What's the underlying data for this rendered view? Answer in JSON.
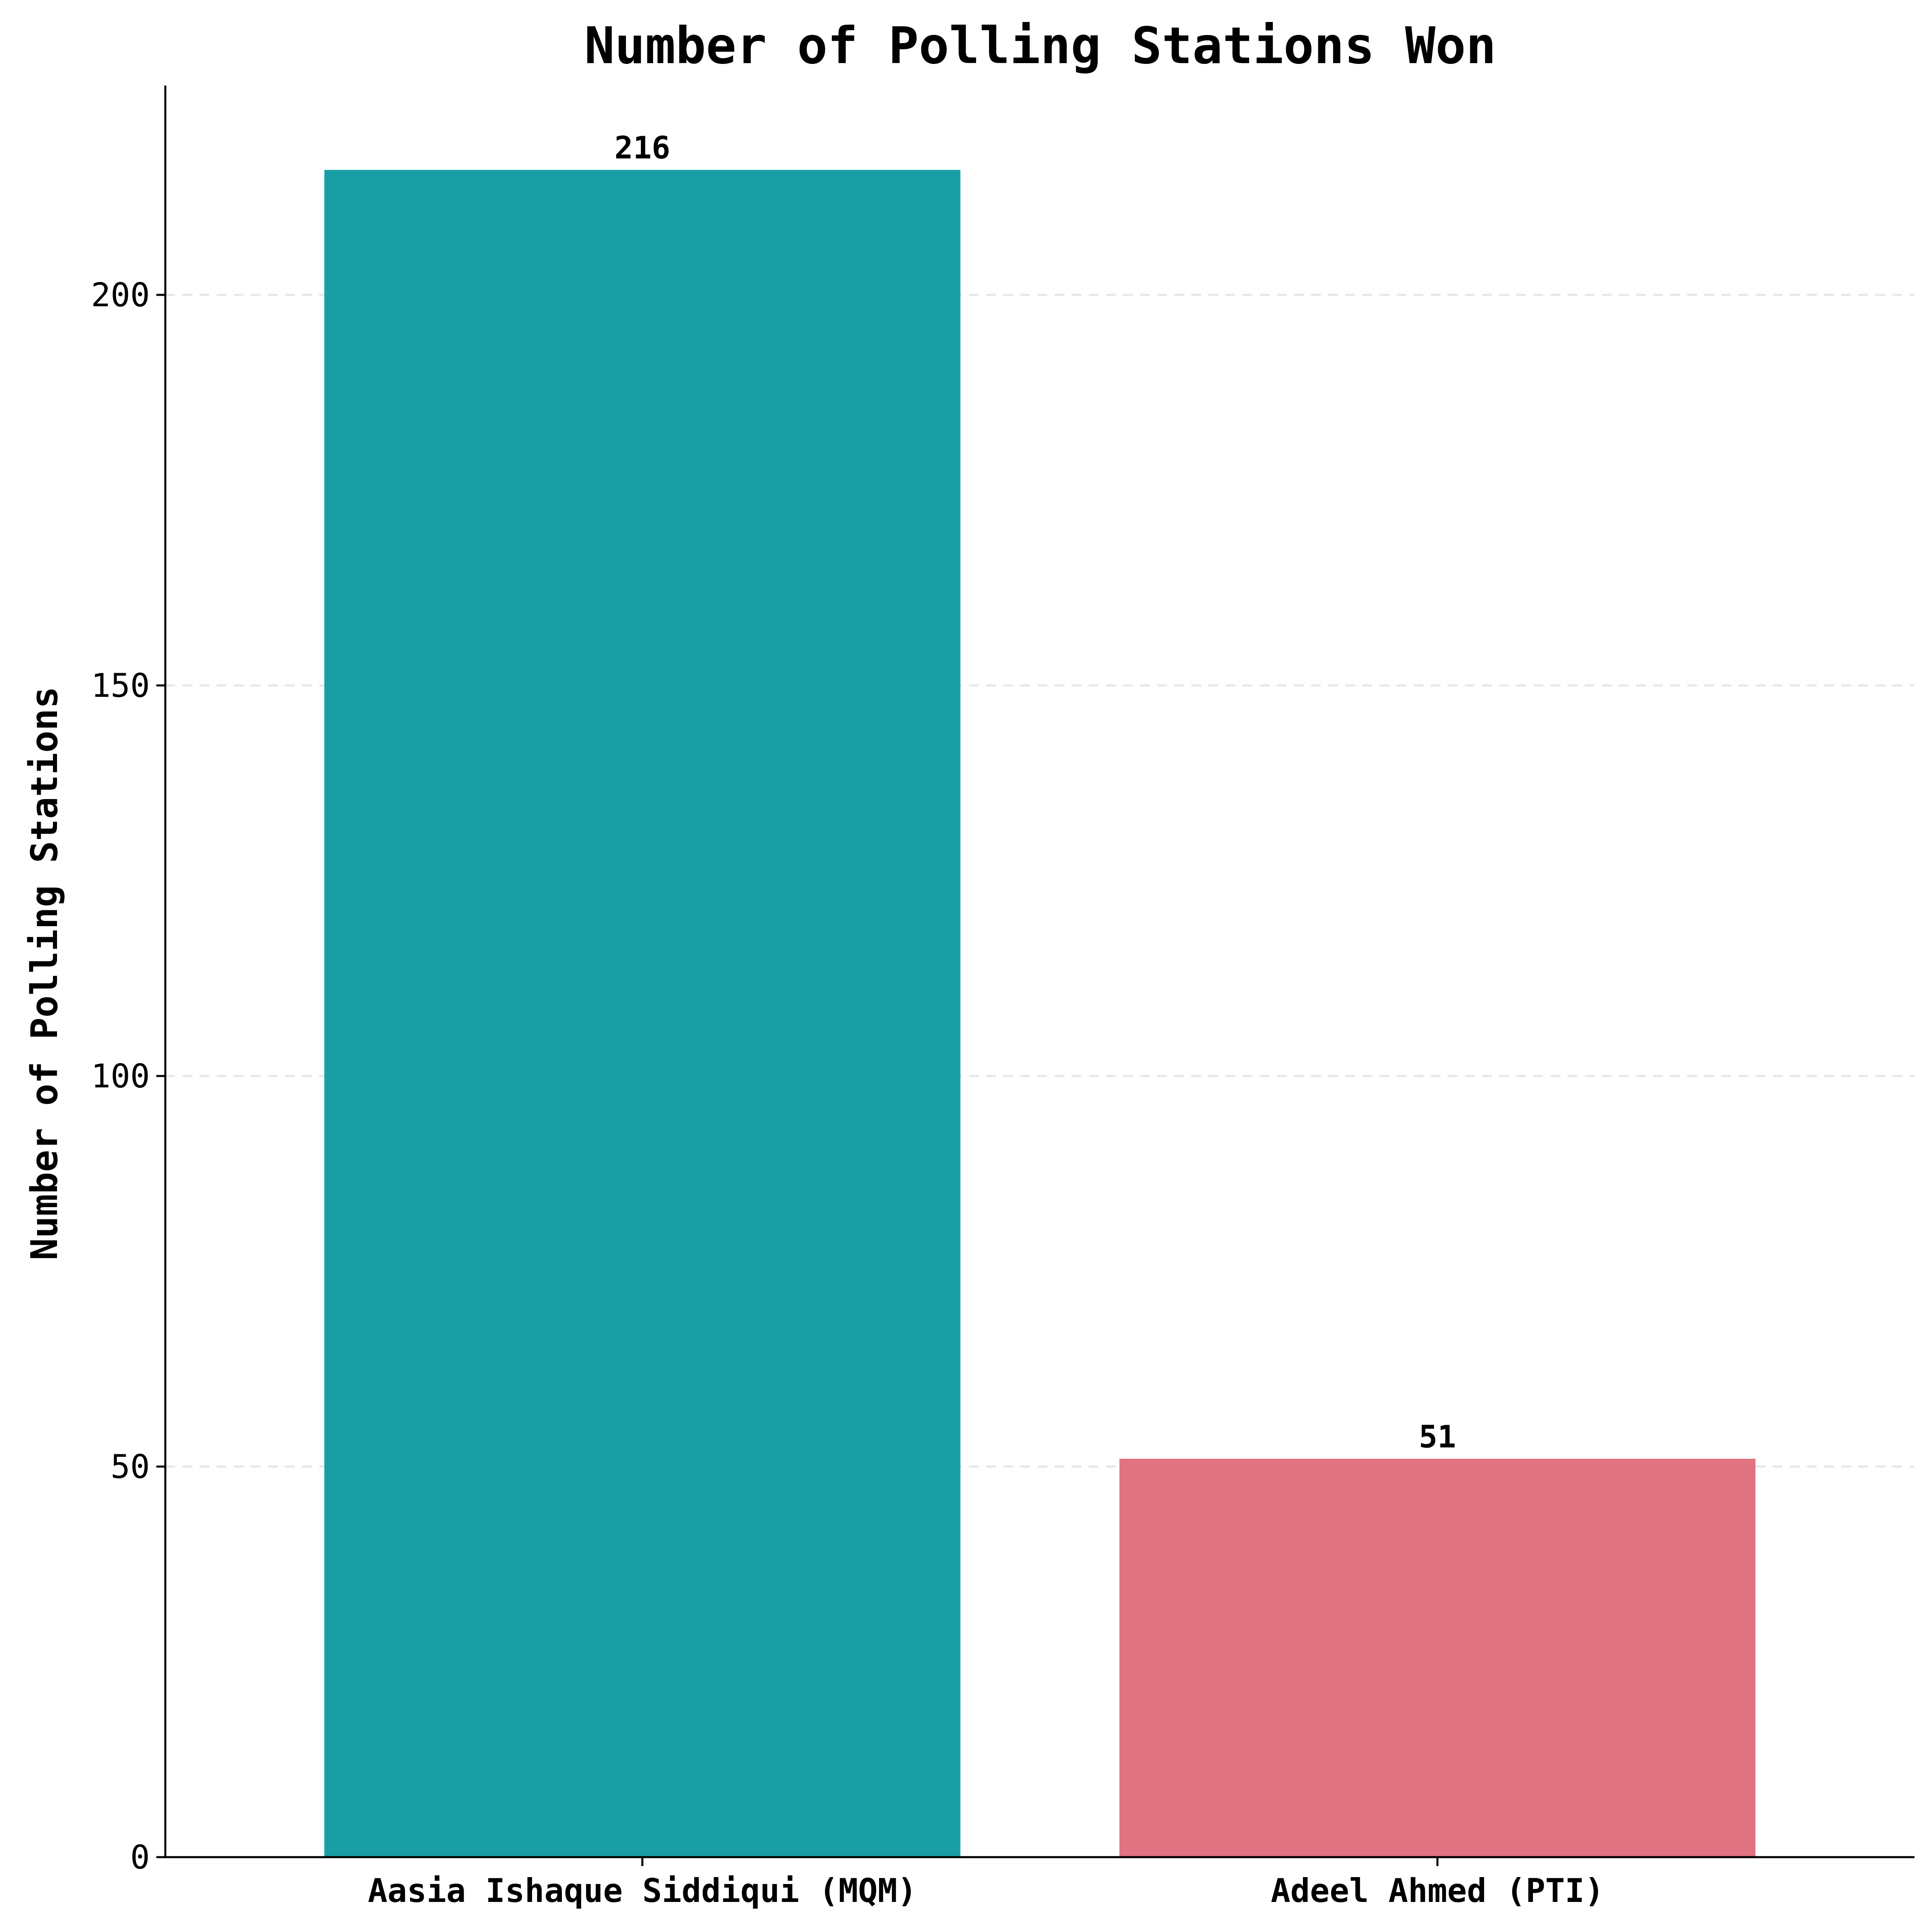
{
  "chart_data": {
    "type": "bar",
    "title": "Number of Polling Stations Won",
    "xlabel": "",
    "ylabel": "Number of Polling Stations",
    "categories": [
      "Aasia Ishaque Siddiqui (MQM)",
      "Adeel Ahmed (PTI)"
    ],
    "values": [
      216,
      51
    ],
    "value_labels": [
      "216",
      "51"
    ],
    "colors": [
      "#1a9ea6",
      "#e17282"
    ],
    "ylim": [
      0,
      226.8
    ],
    "yticks": [
      0,
      50,
      100,
      150,
      200
    ],
    "ytick_labels": [
      "0",
      "50",
      "100",
      "150",
      "200"
    ],
    "grid": "y-dashed",
    "legend": "none"
  }
}
